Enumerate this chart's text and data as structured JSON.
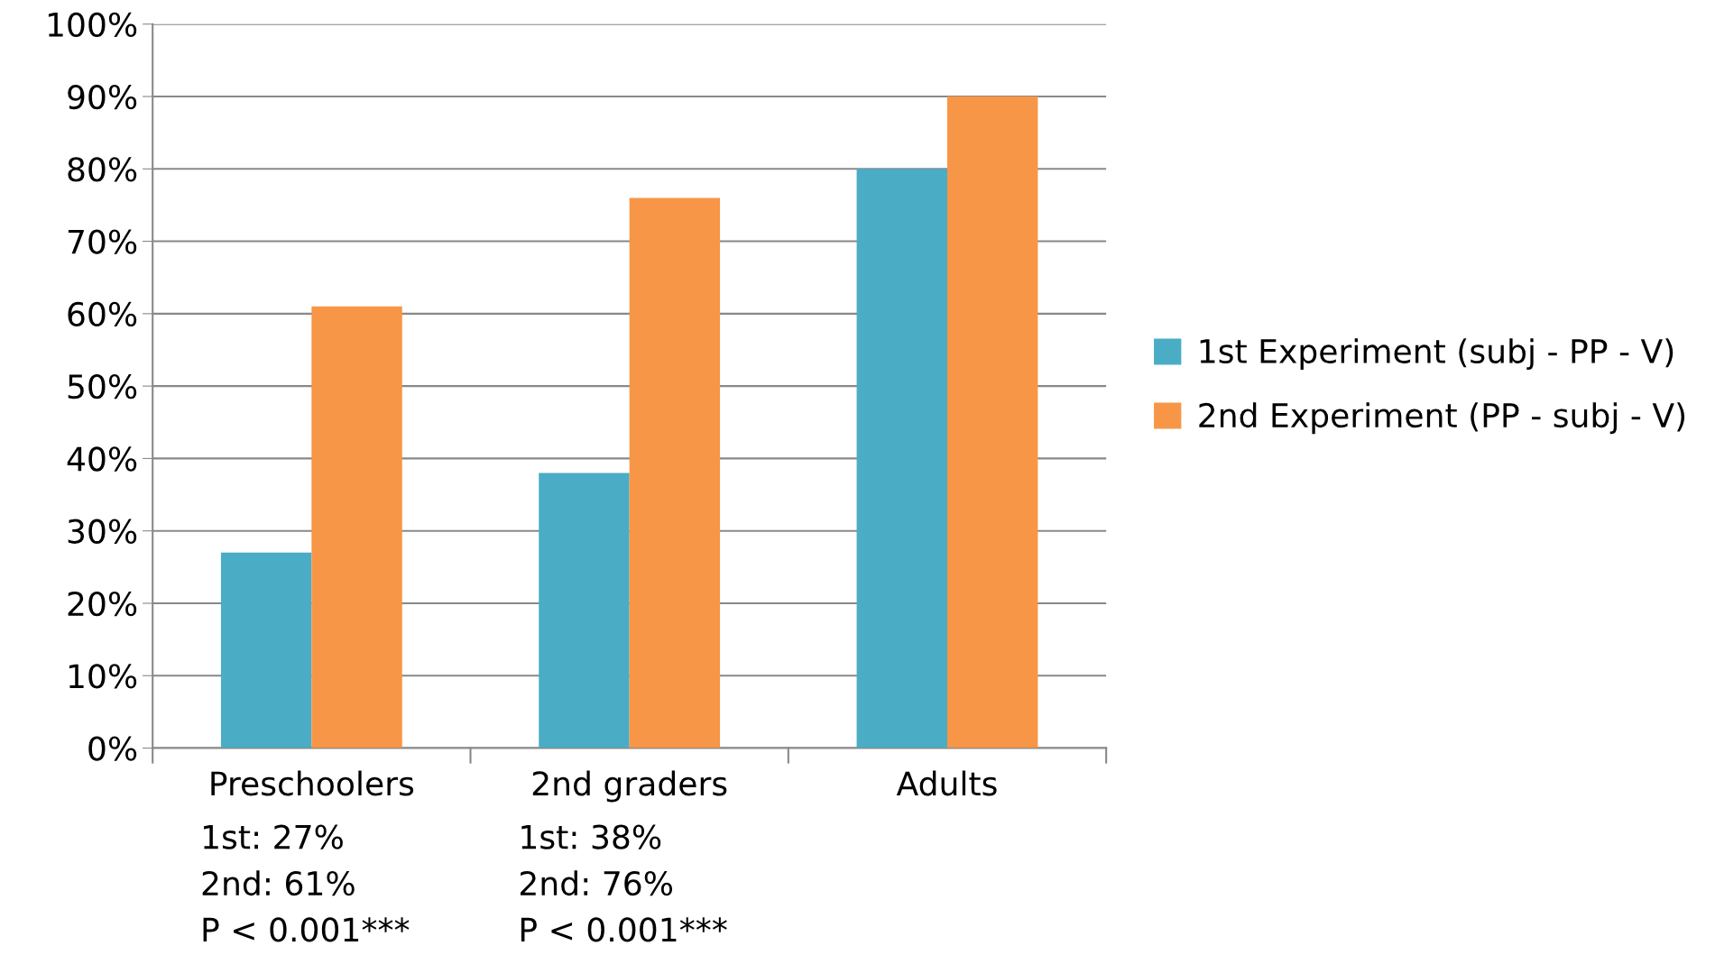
{
  "chart_data": {
    "type": "bar",
    "categories": [
      "Preschoolers",
      "2nd graders",
      "Adults"
    ],
    "series": [
      {
        "name": "1st Experiment (subj - PP - V)",
        "color": "#4bacc6",
        "values": [
          27,
          38,
          80
        ]
      },
      {
        "name": "2nd Experiment (PP - subj - V)",
        "color": "#f79646",
        "values": [
          61,
          76,
          90
        ]
      }
    ],
    "ylim": [
      0,
      100
    ],
    "yticks": [
      {
        "value": 0,
        "label": "0%"
      },
      {
        "value": 10,
        "label": "10%"
      },
      {
        "value": 20,
        "label": "20%"
      },
      {
        "value": 30,
        "label": "30%"
      },
      {
        "value": 40,
        "label": "40%"
      },
      {
        "value": 50,
        "label": "50%"
      },
      {
        "value": 60,
        "label": "60%"
      },
      {
        "value": 70,
        "label": "70%"
      },
      {
        "value": 80,
        "label": "80%"
      },
      {
        "value": 90,
        "label": "90%"
      },
      {
        "value": 100,
        "label": "100%"
      }
    ],
    "grid": "y",
    "legend": "right",
    "annotations": [
      "1st: 27%\n2nd: 61%\nP < 0.001***",
      "1st: 38%\n2nd: 76%\nP < 0.001***"
    ]
  }
}
